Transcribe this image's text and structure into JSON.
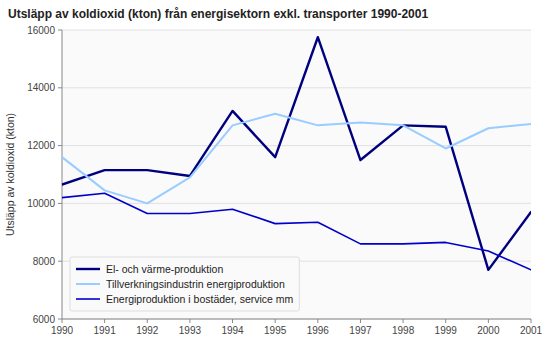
{
  "chart_data": {
    "type": "line",
    "title": "Utsläpp av koldioxid (kton) från energisektorn exkl. transporter 1990-2001",
    "ylabel": "Utsläpp av koldioxid (kton)",
    "x": [
      1990,
      1991,
      1992,
      1993,
      1994,
      1995,
      1996,
      1997,
      1998,
      1999,
      2000,
      2001
    ],
    "series": [
      {
        "name": "El- och värme-produktion",
        "color": "#00007f",
        "values": [
          10650,
          11150,
          11150,
          10950,
          13200,
          11600,
          15750,
          11500,
          12700,
          12650,
          7700,
          9700
        ]
      },
      {
        "name": "Tillverkningsindustrin energiproduktion",
        "color": "#99ccff",
        "values": [
          11600,
          10450,
          10000,
          10900,
          12700,
          13100,
          12700,
          12800,
          12700,
          11900,
          12600,
          12750
        ]
      },
      {
        "name": "Energiproduktion i bostäder, service mm",
        "color": "#0000cc",
        "values": [
          10200,
          10350,
          9650,
          9650,
          9800,
          9300,
          9350,
          8600,
          8600,
          8650,
          8350,
          7700
        ]
      }
    ],
    "xlim": [
      1990,
      2001
    ],
    "xticks": [
      1990,
      1991,
      1992,
      1993,
      1994,
      1995,
      1996,
      1997,
      1998,
      1999,
      2000,
      2001
    ],
    "ylim": [
      6000,
      16000
    ],
    "yticks": [
      6000,
      8000,
      10000,
      12000,
      14000,
      16000
    ],
    "grid": "y",
    "legend": "lower left"
  }
}
